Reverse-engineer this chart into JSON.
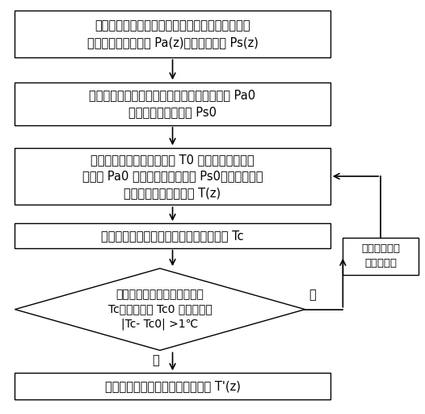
{
  "bg_color": "#ffffff",
  "box_color": "#ffffff",
  "box_edge": "#000000",
  "text_color": "#000000",
  "box1_lines": [
    "采集从参考光纤盒、校准光纤盒以及测量光纤返回",
    "的背向反斯托克斯光 Pa(z)和斯托克斯光 Ps(z)"
  ],
  "box1_italic_parts": [
    [
      "Pa(z)",
      "Ps(z)"
    ]
  ],
  "box2_lines": [
    "计算参考光纤盒区段内的反斯托克斯光平均值 Pa0",
    "和斯托克斯光平均值 Ps0"
  ],
  "box3_lines": [
    "利用参考光纤盒的实际温度 T0 以及反斯托克斯光",
    "平均值 Pa0 和斯托克斯光平均值 Ps0，计算得到光",
    "纤上各点的测量温度值 T(z)"
  ],
  "box4_lines": [
    "计算校准光纤盒区段内的测量温度平均值 Tc"
  ],
  "diamond_lines": [
    "校准光纤盒的测量温度平均值",
    "Tc与实际温度 Tc0 做差值判断",
    "|Tc- Tc0| >1℃"
  ],
  "box5_lines": [
    "校准后的光纤上各点的测量温度值 T'(z)"
  ],
  "box_right_lines": [
    "调整装置的温",
    "度标定系数"
  ],
  "label_yes": "是",
  "label_no": "否",
  "font_size": 10.5
}
